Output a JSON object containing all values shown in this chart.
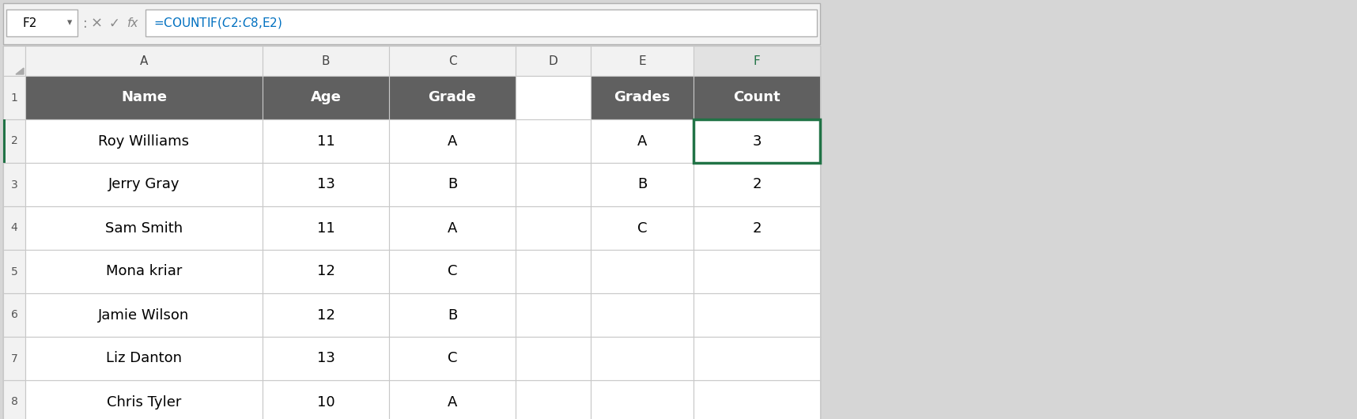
{
  "formula_bar_cell": "F2",
  "formula_bar_formula": "=COUNTIF($C$2:$C$8,E2)",
  "col_headers": [
    "A",
    "B",
    "C",
    "D",
    "E",
    "F"
  ],
  "header_row": {
    "cols": [
      "Name",
      "Age",
      "Grade",
      "",
      "Grades",
      "Count"
    ],
    "bg_color": "#606060",
    "text_color": "#ffffff",
    "font_weight": "bold"
  },
  "data_rows": [
    [
      "Roy Williams",
      "11",
      "A",
      "",
      "A",
      "3"
    ],
    [
      "Jerry Gray",
      "13",
      "B",
      "",
      "B",
      "2"
    ],
    [
      "Sam Smith",
      "11",
      "A",
      "",
      "C",
      "2"
    ],
    [
      "Mona kriar",
      "12",
      "C",
      "",
      "",
      ""
    ],
    [
      "Jamie Wilson",
      "12",
      "B",
      "",
      "",
      ""
    ],
    [
      "Liz Danton",
      "13",
      "C",
      "",
      "",
      ""
    ],
    [
      "Chris Tyler",
      "10",
      "A",
      "",
      "",
      ""
    ]
  ],
  "active_cell_border_color": "#217346",
  "grid_color": "#c8c8c8",
  "row_num_bg": "#f2f2f2",
  "col_hdr_bg": "#f2f2f2",
  "col_hdr_active_bg": "#e2e2e2",
  "col_hdr_active_text": "#217346",
  "col_hdr_text": "#444444",
  "col_letter_active": "F",
  "spreadsheet_bg": "#ffffff",
  "outer_bg": "#d6d6d6",
  "toolbar_bg": "#f2f2f2",
  "formula_color": "#0070c0",
  "row_num_text": "#555555"
}
